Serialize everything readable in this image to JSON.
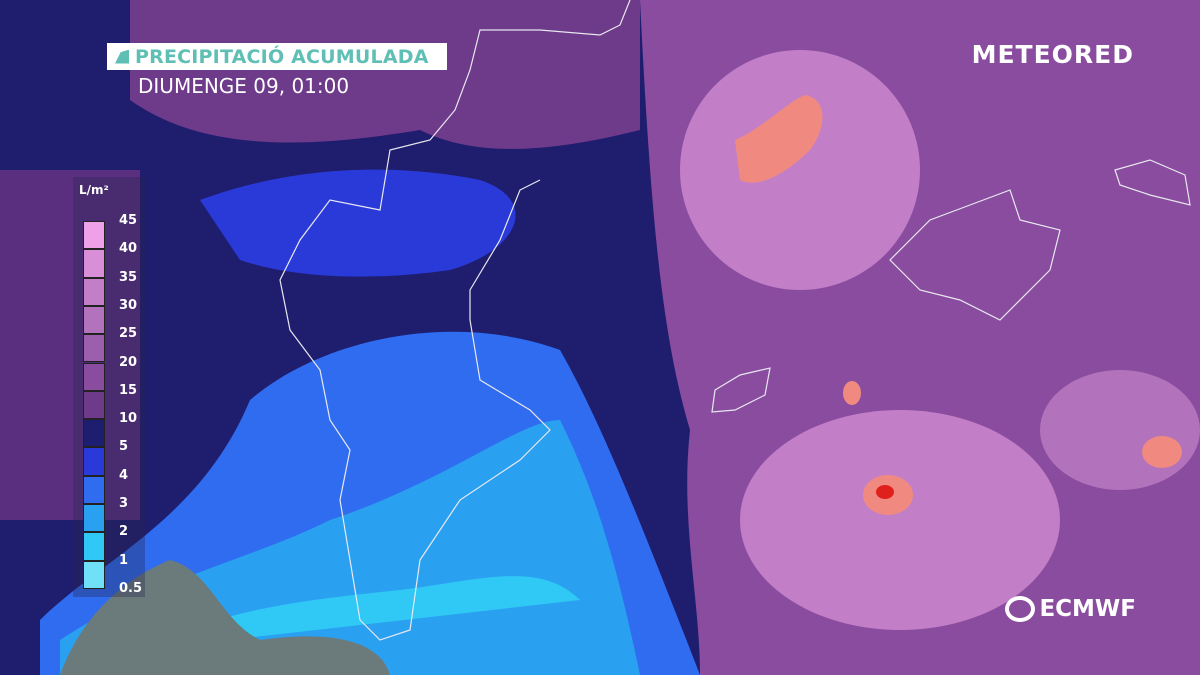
{
  "header": {
    "title": "PRECIPITACIÓ ACUMULADA",
    "subtitle": "DIUMENGE 09, 01:00"
  },
  "brand": {
    "logo": "METEORED",
    "model": "ECMWF"
  },
  "legend": {
    "unit": "L/m²",
    "labels": [
      "45",
      "40",
      "35",
      "30",
      "25",
      "20",
      "15",
      "10",
      "5",
      "4",
      "3",
      "2",
      "1",
      "0.5"
    ],
    "colors": [
      "#eea0e8",
      "#d98fd8",
      "#c27fc8",
      "#b272bc",
      "#9c5fae",
      "#8a4c9e",
      "#6e3a8a",
      "#1e1e70",
      "#2a3ad8",
      "#2f6cf0",
      "#2aa0f0",
      "#30c8f5",
      "#70e0f8"
    ]
  },
  "colors": {
    "title": "#5fbfb5",
    "heavy": "#f08a80",
    "extreme": "#e0201c",
    "land_nodata": "#6b7a7a"
  }
}
